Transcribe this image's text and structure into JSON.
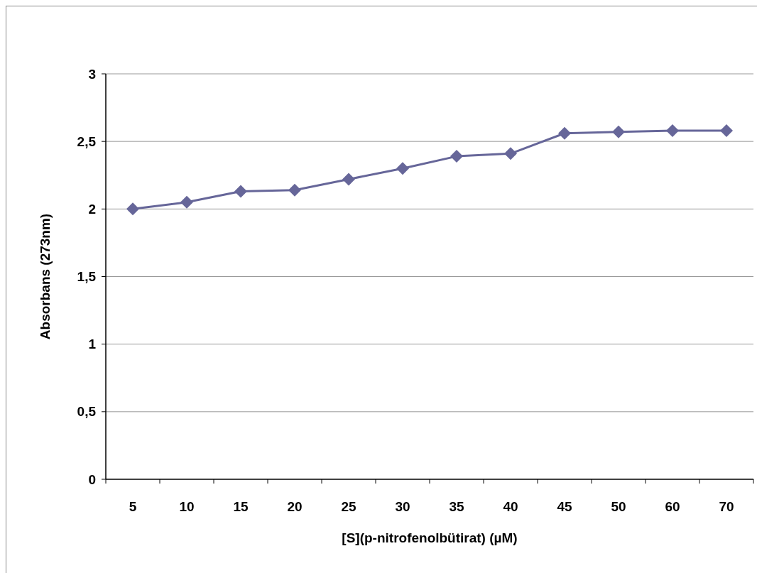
{
  "chart_data": {
    "type": "line",
    "xlabel": "[S](p-nitrofenolbütirat) (µM)",
    "ylabel": "Absorbans (273nm)",
    "categories": [
      "5",
      "10",
      "15",
      "20",
      "25",
      "30",
      "35",
      "40",
      "45",
      "50",
      "60",
      "70"
    ],
    "series": [
      {
        "color": "#666699",
        "values": [
          2.0,
          2.05,
          2.13,
          2.14,
          2.22,
          2.3,
          2.39,
          2.41,
          2.56,
          2.57,
          2.58,
          2.58
        ]
      }
    ],
    "ylim": [
      0,
      3
    ],
    "yticks": [
      0,
      {
        "value": 0.5,
        "label": "0,5"
      },
      1,
      {
        "value": 1.5,
        "label": "1,5"
      },
      2,
      {
        "value": 2.5,
        "label": "2,5"
      },
      3
    ],
    "grid": "y",
    "marker": "diamond",
    "line_style": "solid"
  }
}
